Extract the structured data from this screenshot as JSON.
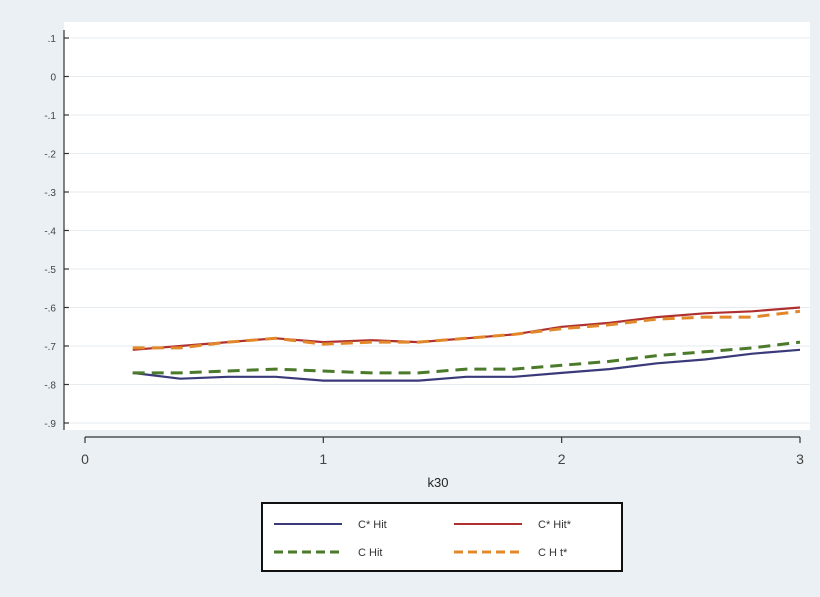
{
  "chart_data": {
    "type": "line",
    "title": "",
    "xlabel": "k30",
    "ylabel": "",
    "xlim": [
      0,
      3
    ],
    "ylim": [
      -0.9,
      1.0
    ],
    "x_ticks": [
      0,
      1,
      2,
      3
    ],
    "x_tick_labels": [
      "0",
      "1",
      "2",
      "3"
    ],
    "y_ticks": [
      -0.9,
      -0.8,
      -0.7,
      -0.6,
      -0.5,
      -0.4,
      -0.3,
      -0.2,
      -0.1,
      0.0,
      0.1
    ],
    "y_tick_labels": [
      "-.9",
      "-.8",
      "-.7",
      "-.6",
      "-.5",
      "-.4",
      "-.3",
      "-.2",
      "-.1",
      "0",
      ".1"
    ],
    "grid": true,
    "legend_position": "bottom",
    "x": [
      0.2,
      0.4,
      0.6,
      0.8,
      1.0,
      1.2,
      1.4,
      1.6,
      1.8,
      2.0,
      2.2,
      2.4,
      2.6,
      2.8,
      3.0
    ],
    "series": [
      {
        "name": "C* Hit",
        "color": "#3a3a7a",
        "style": "solid",
        "values": [
          -0.77,
          -0.785,
          -0.78,
          -0.78,
          -0.79,
          -0.79,
          -0.79,
          -0.78,
          -0.78,
          -0.77,
          -0.76,
          -0.745,
          -0.735,
          -0.72,
          -0.71
        ]
      },
      {
        "name": "C* Hit*",
        "color": "#b03030",
        "style": "solid",
        "values": [
          -0.71,
          -0.7,
          -0.69,
          -0.68,
          -0.69,
          -0.685,
          -0.69,
          -0.68,
          -0.67,
          -0.65,
          -0.64,
          -0.625,
          -0.615,
          -0.61,
          -0.6
        ]
      },
      {
        "name": "C Hit",
        "color": "#4a7a2a",
        "style": "dashed",
        "values": [
          -0.77,
          -0.77,
          -0.765,
          -0.76,
          -0.765,
          -0.77,
          -0.77,
          -0.76,
          -0.76,
          -0.75,
          -0.74,
          -0.725,
          -0.715,
          -0.705,
          -0.69
        ]
      },
      {
        "name": "C H t*",
        "color": "#e0882a",
        "style": "dashed",
        "values": [
          -0.705,
          -0.705,
          -0.69,
          -0.68,
          -0.695,
          -0.69,
          -0.69,
          -0.68,
          -0.67,
          -0.655,
          -0.645,
          -0.63,
          -0.625,
          -0.625,
          -0.61
        ]
      }
    ]
  }
}
